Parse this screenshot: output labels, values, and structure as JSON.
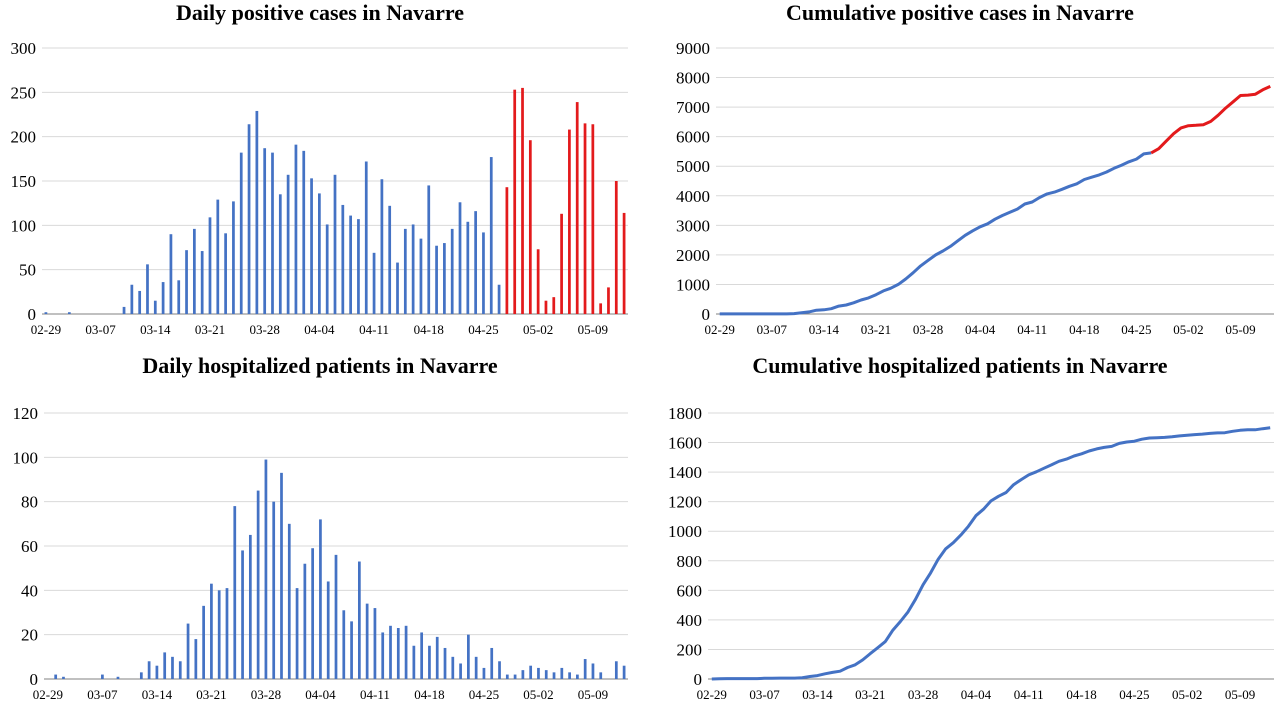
{
  "colors": {
    "blue": "#4472C4",
    "red": "#E31A1C",
    "grid": "#D9D9D9",
    "axis": "#808080"
  },
  "x_tick_labels": [
    "02-29",
    "03-07",
    "03-14",
    "03-21",
    "03-28",
    "04-04",
    "04-11",
    "04-18",
    "04-25",
    "05-02",
    "05-09"
  ],
  "chart_data": [
    {
      "type": "bar",
      "title": "Daily positive cases in Navarre",
      "ylim": [
        0,
        300
      ],
      "yticks": [
        0,
        50,
        100,
        150,
        200,
        250,
        300
      ],
      "grid": true,
      "x_start": "02-29",
      "highlight_from": "04-28",
      "values": [
        2,
        0,
        0,
        2,
        0,
        0,
        0,
        0,
        0,
        0,
        8,
        33,
        26,
        56,
        15,
        36,
        90,
        38,
        72,
        96,
        71,
        109,
        129,
        91,
        127,
        182,
        214,
        229,
        187,
        182,
        135,
        157,
        191,
        184,
        153,
        136,
        101,
        157,
        123,
        111,
        107,
        172,
        69,
        152,
        122,
        58,
        96,
        101,
        85,
        145,
        77,
        80,
        96,
        126,
        104,
        116,
        92,
        177,
        33,
        143,
        253,
        255,
        196,
        73,
        15,
        19,
        113,
        208,
        239,
        215,
        214,
        12,
        30,
        150,
        114
      ]
    },
    {
      "type": "line",
      "title": "Cumulative positive cases in Navarre",
      "ylim": [
        0,
        9000
      ],
      "yticks": [
        0,
        1000,
        2000,
        3000,
        4000,
        5000,
        6000,
        7000,
        8000,
        9000
      ],
      "grid": true,
      "x_start": "02-29",
      "highlight_from": "04-27",
      "values": [
        2,
        2,
        2,
        4,
        4,
        4,
        4,
        4,
        4,
        4,
        12,
        45,
        71,
        127,
        142,
        178,
        268,
        306,
        378,
        474,
        545,
        654,
        783,
        874,
        1001,
        1183,
        1397,
        1626,
        1813,
        1995,
        2130,
        2287,
        2478,
        2662,
        2815,
        2951,
        3052,
        3209,
        3332,
        3443,
        3550,
        3722,
        3791,
        3943,
        4065,
        4123,
        4219,
        4320,
        4405,
        4550,
        4627,
        4707,
        4803,
        4929,
        5033,
        5149,
        5241,
        5418,
        5451,
        5594,
        5847,
        6102,
        6298,
        6371,
        6386,
        6405,
        6518,
        6726,
        6965,
        7180,
        7394,
        7406,
        7436,
        7586,
        7700
      ]
    },
    {
      "type": "bar",
      "title": "Daily hospitalized patients in Navarre",
      "ylim": [
        0,
        120
      ],
      "yticks": [
        0,
        20,
        40,
        60,
        80,
        100,
        120
      ],
      "grid": true,
      "x_start": "02-29",
      "values": [
        0,
        2,
        1,
        0,
        0,
        0,
        0,
        2,
        0,
        1,
        0,
        0,
        3,
        8,
        6,
        12,
        10,
        8,
        25,
        18,
        33,
        43,
        40,
        41,
        78,
        58,
        65,
        85,
        99,
        80,
        93,
        70,
        41,
        52,
        59,
        72,
        44,
        56,
        31,
        26,
        53,
        34,
        32,
        21,
        24,
        23,
        24,
        15,
        21,
        15,
        19,
        14,
        10,
        7,
        20,
        10,
        5,
        14,
        8,
        2,
        2,
        4,
        6,
        5,
        4,
        3,
        5,
        3,
        2,
        9,
        7,
        3,
        0,
        8,
        6
      ]
    },
    {
      "type": "line",
      "title": "Cumulative hospitalized patients in Navarre",
      "ylim": [
        0,
        1800
      ],
      "yticks": [
        0,
        200,
        400,
        600,
        800,
        1000,
        1200,
        1400,
        1600,
        1800
      ],
      "grid": true,
      "x_start": "02-29",
      "values": [
        0,
        2,
        3,
        3,
        3,
        3,
        3,
        5,
        5,
        6,
        6,
        6,
        9,
        17,
        23,
        35,
        45,
        53,
        78,
        96,
        129,
        172,
        212,
        253,
        331,
        389,
        454,
        539,
        638,
        718,
        811,
        881,
        922,
        974,
        1033,
        1105,
        1149,
        1205,
        1236,
        1262,
        1315,
        1349,
        1381,
        1402,
        1426,
        1449,
        1473,
        1488,
        1509,
        1524,
        1543,
        1557,
        1567,
        1574,
        1594,
        1604,
        1609,
        1623,
        1631,
        1633,
        1635,
        1639,
        1645,
        1650,
        1654,
        1657,
        1662,
        1665,
        1667,
        1676,
        1683,
        1686,
        1686,
        1694,
        1700
      ]
    }
  ]
}
